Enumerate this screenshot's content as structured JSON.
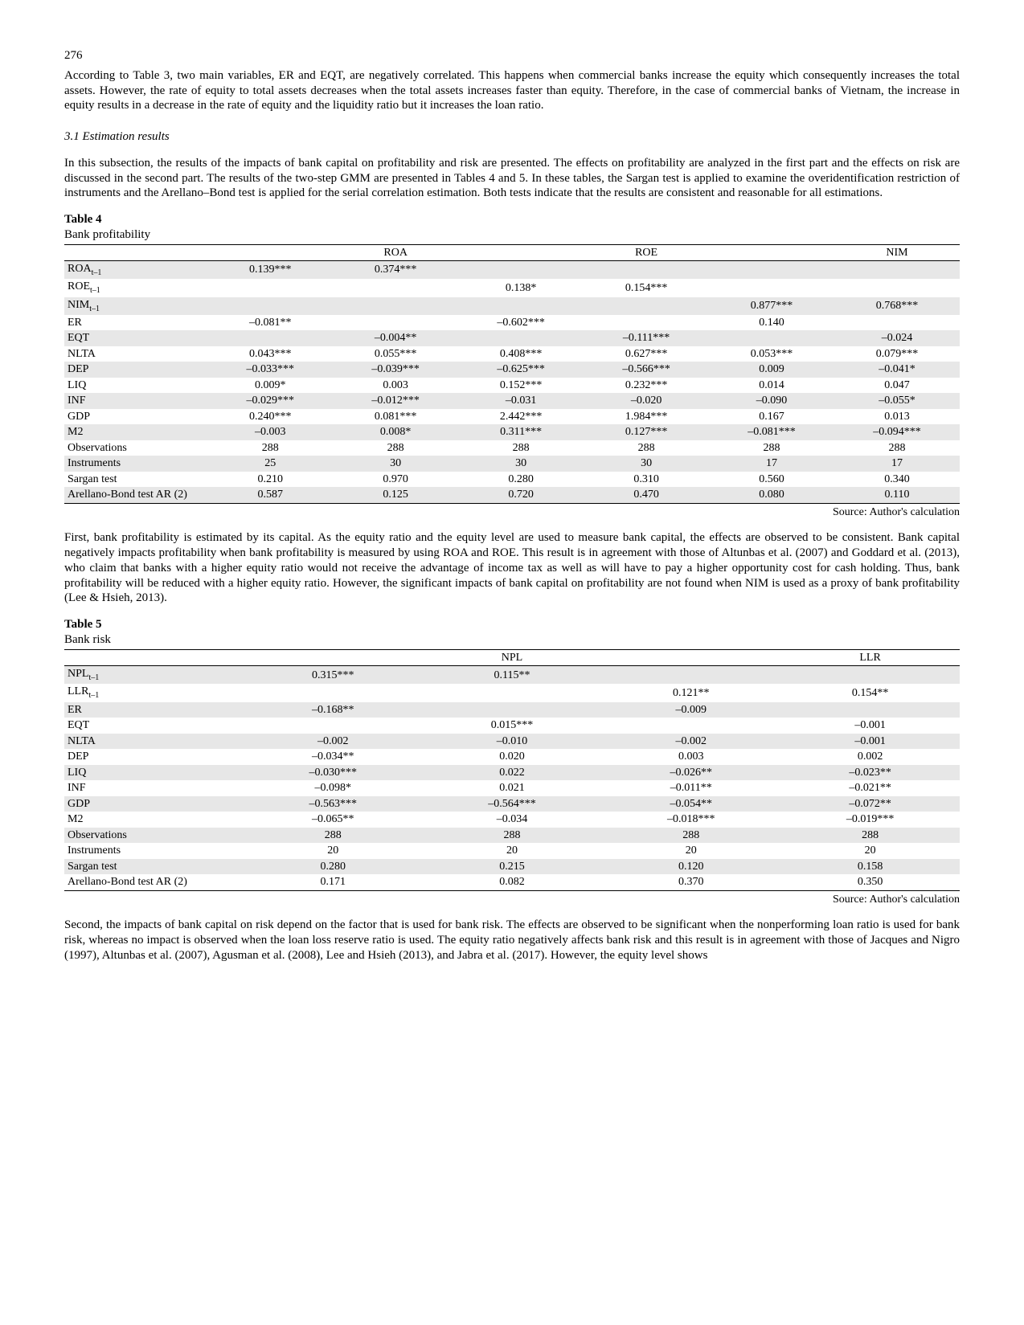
{
  "page_number": "276",
  "para1": "According to Table 3, two main variables, ER and EQT, are negatively correlated. This happens when commercial banks increase the equity which consequently increases the total assets. However, the rate of equity to total assets decreases when the total assets increases faster than equity. Therefore, in the case of commercial banks of Vietnam, the increase in equity results in a decrease in the rate of equity and the liquidity ratio but it increases the loan ratio.",
  "section_heading": "3.1 Estimation results",
  "para2": "In this subsection, the results of the impacts of bank capital on profitability and risk are presented. The effects on profitability are analyzed in the first part and the effects on risk are discussed in the second part. The results of the two-step GMM are presented in Tables 4 and 5. In these tables, the Sargan test is applied to examine the overidentification restriction of instruments and the Arellano–Bond test is applied for the serial correlation estimation. Both tests indicate that the results are consistent and reasonable for all estimations.",
  "table4": {
    "title": "Table 4",
    "subtitle": "Bank profitability",
    "col_headers": [
      "",
      "ROA",
      "",
      "ROE",
      "",
      "NIM",
      ""
    ],
    "rows": [
      {
        "label": "ROA",
        "sub": "t–1",
        "c": [
          "0.139***",
          "0.374***",
          "",
          "",
          "",
          ""
        ],
        "shaded": true
      },
      {
        "label": "ROE",
        "sub": "t–1",
        "c": [
          "",
          "",
          "0.138*",
          "0.154***",
          "",
          ""
        ],
        "shaded": false
      },
      {
        "label": "NIM",
        "sub": "t–1",
        "c": [
          "",
          "",
          "",
          "",
          "0.877***",
          "0.768***"
        ],
        "shaded": true
      },
      {
        "label": "ER",
        "c": [
          "–0.081**",
          "",
          "–0.602***",
          "",
          "0.140",
          ""
        ],
        "shaded": false
      },
      {
        "label": "EQT",
        "c": [
          "",
          "–0.004**",
          "",
          "–0.111***",
          "",
          "–0.024"
        ],
        "shaded": true
      },
      {
        "label": "NLTA",
        "c": [
          "0.043***",
          "0.055***",
          "0.408***",
          "0.627***",
          "0.053***",
          "0.079***"
        ],
        "shaded": false
      },
      {
        "label": "DEP",
        "c": [
          "–0.033***",
          "–0.039***",
          "–0.625***",
          "–0.566***",
          "0.009",
          "–0.041*"
        ],
        "shaded": true
      },
      {
        "label": "LIQ",
        "c": [
          "0.009*",
          "0.003",
          "0.152***",
          "0.232***",
          "0.014",
          "0.047"
        ],
        "shaded": false
      },
      {
        "label": "INF",
        "c": [
          "–0.029***",
          "–0.012***",
          "–0.031",
          "–0.020",
          "–0.090",
          "–0.055*"
        ],
        "shaded": true
      },
      {
        "label": "GDP",
        "c": [
          "0.240***",
          "0.081***",
          "2.442***",
          "1.984***",
          "0.167",
          "0.013"
        ],
        "shaded": false
      },
      {
        "label": "M2",
        "c": [
          "–0.003",
          "0.008*",
          "0.311***",
          "0.127***",
          "–0.081***",
          "–0.094***"
        ],
        "shaded": true
      },
      {
        "label": "Observations",
        "c": [
          "288",
          "288",
          "288",
          "288",
          "288",
          "288"
        ],
        "shaded": false
      },
      {
        "label": "Instruments",
        "c": [
          "25",
          "30",
          "30",
          "30",
          "17",
          "17"
        ],
        "shaded": true
      },
      {
        "label": "Sargan test",
        "c": [
          "0.210",
          "0.970",
          "0.280",
          "0.310",
          "0.560",
          "0.340"
        ],
        "shaded": false
      },
      {
        "label": "Arellano-Bond test AR (2)",
        "c": [
          "0.587",
          "0.125",
          "0.720",
          "0.470",
          "0.080",
          "0.110"
        ],
        "shaded": true
      }
    ],
    "source": "Source: Author's calculation"
  },
  "para3": "First, bank profitability is estimated by its capital. As the equity ratio and the equity level are used to measure bank capital, the effects are observed to be consistent. Bank capital negatively impacts profitability when bank profitability is measured by using ROA and ROE. This result is in agreement with those of Altunbas et al. (2007) and Goddard et al. (2013), who claim that banks with a higher equity ratio would not receive the advantage of income tax as well as will have to pay a higher opportunity cost for cash holding. Thus, bank profitability will be reduced with a higher equity ratio. However, the significant impacts of bank capital on profitability are not found when NIM is used as a proxy of bank profitability (Lee & Hsieh, 2013).",
  "table5": {
    "title": "Table 5",
    "subtitle": "Bank risk",
    "col_headers": [
      "",
      "NPL",
      "",
      "LLR",
      ""
    ],
    "rows": [
      {
        "label": "NPL",
        "sub": "t–1",
        "c": [
          "0.315***",
          "0.115**",
          "",
          ""
        ],
        "shaded": true
      },
      {
        "label": "LLR",
        "sub": "t–1",
        "c": [
          "",
          "",
          "0.121**",
          "0.154**"
        ],
        "shaded": false
      },
      {
        "label": "ER",
        "c": [
          "–0.168**",
          "",
          "–0.009",
          ""
        ],
        "shaded": true
      },
      {
        "label": "EQT",
        "c": [
          "",
          "0.015***",
          "",
          "–0.001"
        ],
        "shaded": false
      },
      {
        "label": "NLTA",
        "c": [
          "–0.002",
          "–0.010",
          "–0.002",
          "–0.001"
        ],
        "shaded": true
      },
      {
        "label": "DEP",
        "c": [
          "–0.034**",
          "0.020",
          "0.003",
          "0.002"
        ],
        "shaded": false
      },
      {
        "label": "LIQ",
        "c": [
          "–0.030***",
          "0.022",
          "–0.026**",
          "–0.023**"
        ],
        "shaded": true
      },
      {
        "label": "INF",
        "c": [
          "–0.098*",
          "0.021",
          "–0.011**",
          "–0.021**"
        ],
        "shaded": false
      },
      {
        "label": "GDP",
        "c": [
          "–0.563***",
          "–0.564***",
          "–0.054**",
          "–0.072**"
        ],
        "shaded": true
      },
      {
        "label": "M2",
        "c": [
          "–0.065**",
          "–0.034",
          "–0.018***",
          "–0.019***"
        ],
        "shaded": false
      },
      {
        "label": "Observations",
        "c": [
          "288",
          "288",
          "288",
          "288"
        ],
        "shaded": true
      },
      {
        "label": "Instruments",
        "c": [
          "20",
          "20",
          "20",
          "20"
        ],
        "shaded": false
      },
      {
        "label": "Sargan test",
        "c": [
          "0.280",
          "0.215",
          "0.120",
          "0.158"
        ],
        "shaded": true
      },
      {
        "label": "Arellano-Bond test AR (2)",
        "c": [
          "0.171",
          "0.082",
          "0.370",
          "0.350"
        ],
        "shaded": false
      }
    ],
    "source": "Source: Author's calculation"
  },
  "para4": "Second, the impacts of bank capital on risk depend on the factor that is used for bank risk. The effects are observed to be significant when the nonperforming loan ratio is used for bank risk, whereas no impact is observed when the loan loss reserve ratio is used. The equity ratio negatively affects bank risk and this result is in agreement with those of Jacques and Nigro (1997), Altunbas et al. (2007), Agusman et al. (2008), Lee and Hsieh (2013), and Jabra et al. (2017). However, the equity level shows"
}
